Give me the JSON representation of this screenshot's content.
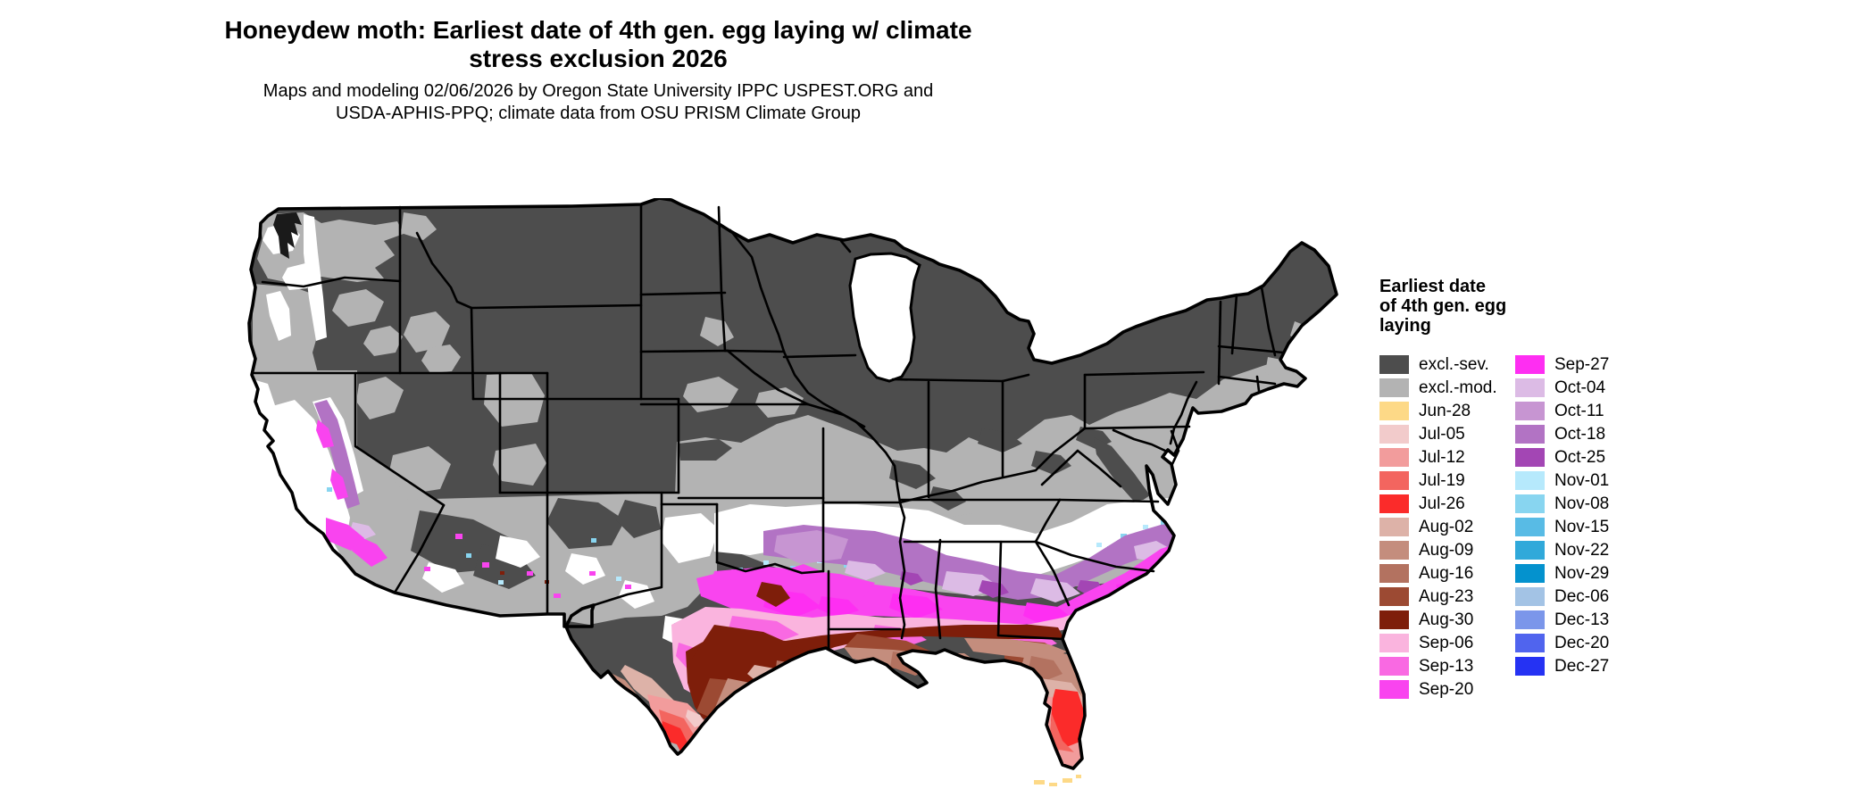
{
  "title": {
    "line1": "Honeydew moth: Earliest date of 4th gen. egg laying w/ climate",
    "line2": "stress exclusion 2026"
  },
  "subtitle": {
    "line1": "Maps and modeling 02/06/2026 by Oregon State University IPPC USPEST.ORG and",
    "line2": "USDA-APHIS-PPQ; climate data from OSU PRISM Climate Group"
  },
  "legend": {
    "title_lines": [
      "Earliest date",
      "of 4th gen. egg",
      "laying"
    ],
    "columns": [
      [
        {
          "label": "excl.-sev.",
          "key": "excl_sev"
        },
        {
          "label": "excl.-mod.",
          "key": "excl_mod"
        },
        {
          "label": "Jun-28",
          "key": "jun28"
        },
        {
          "label": "Jul-05",
          "key": "jul05"
        },
        {
          "label": "Jul-12",
          "key": "jul12"
        },
        {
          "label": "Jul-19",
          "key": "jul19"
        },
        {
          "label": "Jul-26",
          "key": "jul26"
        },
        {
          "label": "Aug-02",
          "key": "aug02"
        },
        {
          "label": "Aug-09",
          "key": "aug09"
        },
        {
          "label": "Aug-16",
          "key": "aug16"
        },
        {
          "label": "Aug-23",
          "key": "aug23"
        },
        {
          "label": "Aug-30",
          "key": "aug30"
        },
        {
          "label": "Sep-06",
          "key": "sep06"
        },
        {
          "label": "Sep-13",
          "key": "sep13"
        },
        {
          "label": "Sep-20",
          "key": "sep20"
        }
      ],
      [
        {
          "label": "Sep-27",
          "key": "sep27"
        },
        {
          "label": "Oct-04",
          "key": "oct04"
        },
        {
          "label": "Oct-11",
          "key": "oct11"
        },
        {
          "label": "Oct-18",
          "key": "oct18"
        },
        {
          "label": "Oct-25",
          "key": "oct25"
        },
        {
          "label": "Nov-01",
          "key": "nov01"
        },
        {
          "label": "Nov-08",
          "key": "nov08"
        },
        {
          "label": "Nov-15",
          "key": "nov15"
        },
        {
          "label": "Nov-22",
          "key": "nov22"
        },
        {
          "label": "Nov-29",
          "key": "nov29"
        },
        {
          "label": "Dec-06",
          "key": "dec06"
        },
        {
          "label": "Dec-13",
          "key": "dec13"
        },
        {
          "label": "Dec-20",
          "key": "dec20"
        },
        {
          "label": "Dec-27",
          "key": "dec27"
        }
      ]
    ]
  },
  "palette": {
    "excl_sev": "#4d4d4d",
    "excl_mod": "#b3b3b3",
    "jun28": "#fdd987",
    "jul05": "#f2cbcb",
    "jul12": "#f29c9c",
    "jul19": "#f3655f",
    "jul26": "#fb2b2a",
    "aug02": "#ddb2a8",
    "aug09": "#c48d7d",
    "aug16": "#b37260",
    "aug23": "#9c4a33",
    "aug30": "#7e1e0a",
    "sep06": "#fab4de",
    "sep13": "#f969e2",
    "sep20": "#f944ef",
    "sep27": "#fe2ef2",
    "oct04": "#dcbbe5",
    "oct11": "#c795d2",
    "oct18": "#b273c4",
    "oct25": "#a346b4",
    "nov01": "#b6e9fc",
    "nov08": "#88d5f0",
    "nov15": "#58bbe5",
    "nov22": "#30a9da",
    "nov29": "#0492ce",
    "dec06": "#a3c3e5",
    "dec13": "#7b96ea",
    "dec20": "#5064ee",
    "dec27": "#2532f3",
    "no_date": "#ffffff",
    "border": "#000000",
    "background": "#ffffff"
  }
}
